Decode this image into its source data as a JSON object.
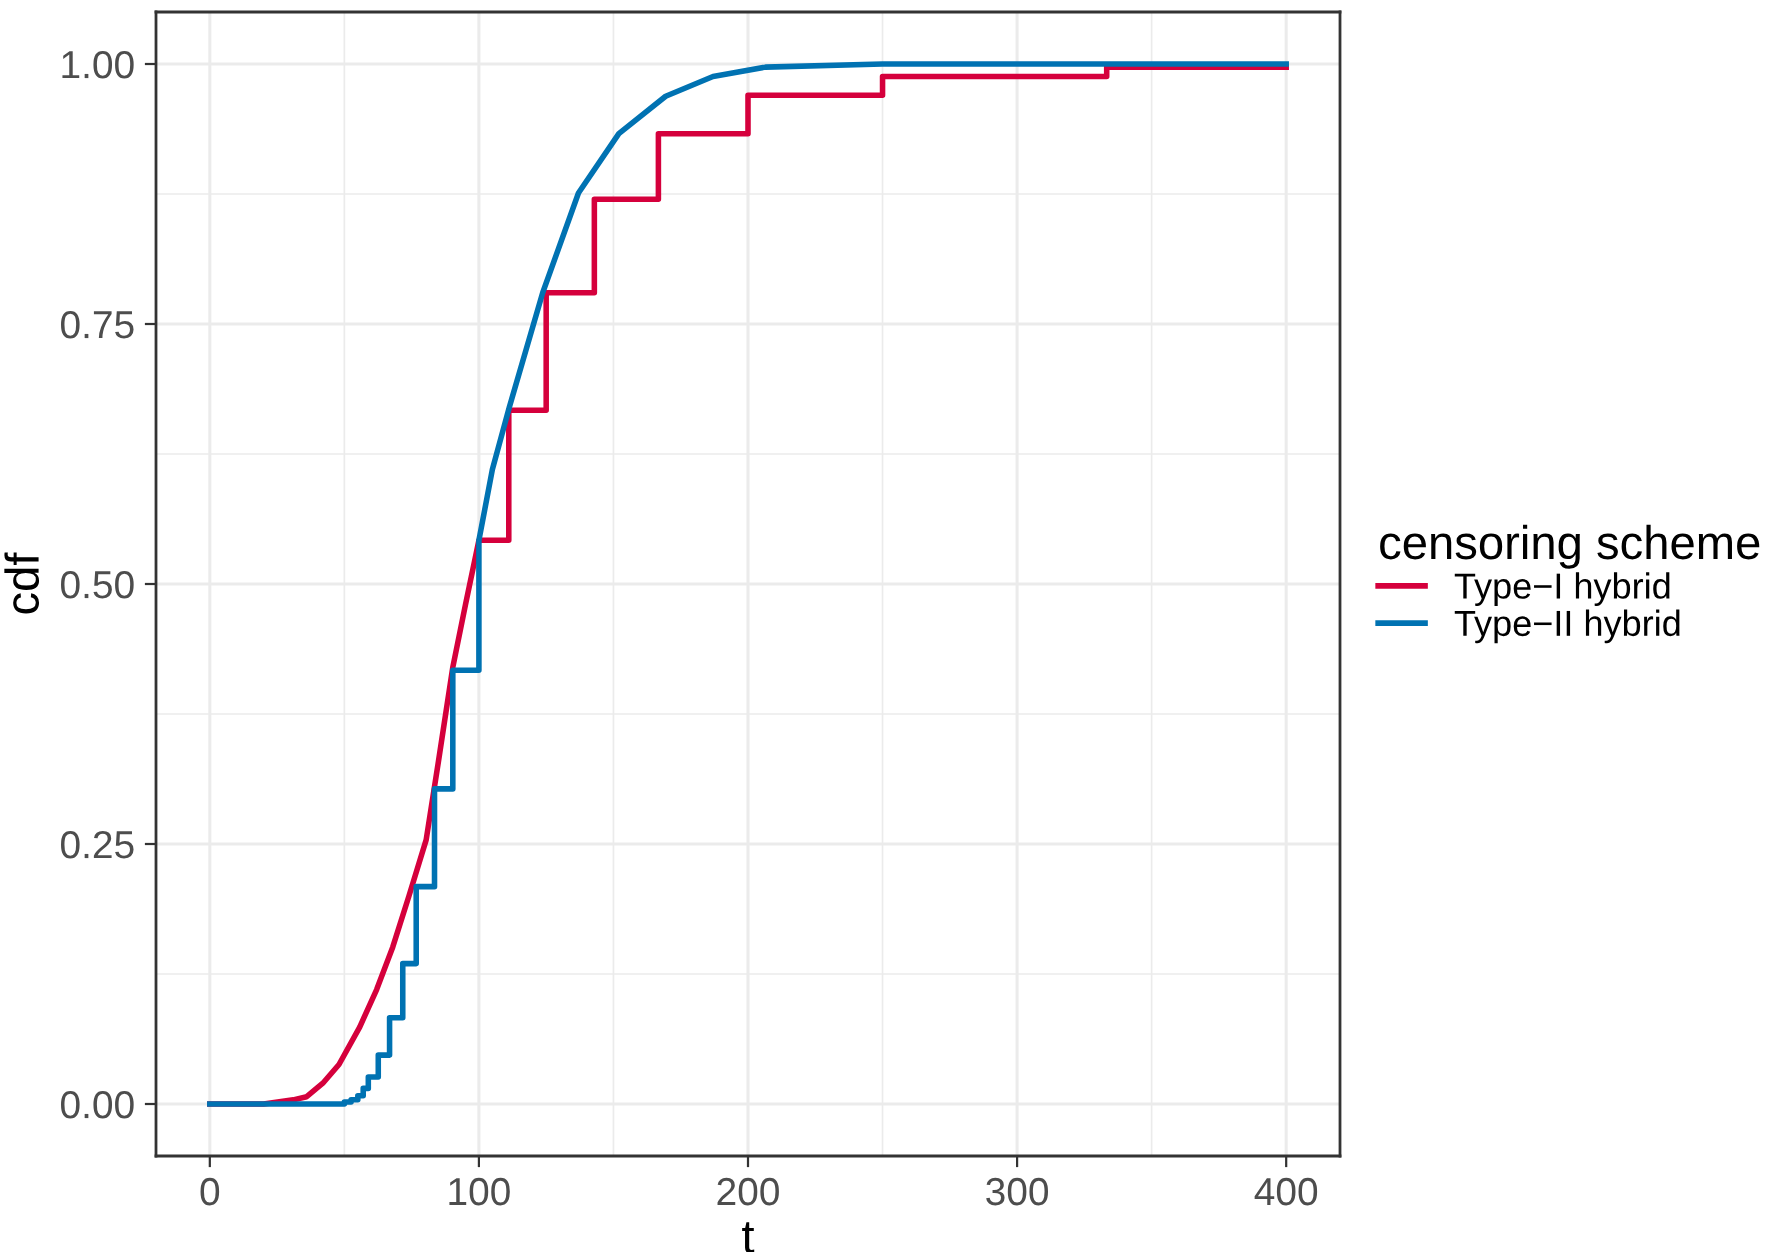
{
  "chart_data": {
    "type": "line",
    "xlabel": "t",
    "ylabel": "cdf",
    "legend_title": "censoring scheme",
    "xlim": [
      -20,
      420
    ],
    "ylim": [
      -0.05,
      1.05
    ],
    "xticks": [
      0,
      100,
      200,
      300,
      400
    ],
    "yticks": [
      {
        "value": 0,
        "label": "0.00"
      },
      {
        "value": 0.25,
        "label": "0.25"
      },
      {
        "value": 0.5,
        "label": "0.50"
      },
      {
        "value": 0.75,
        "label": "0.75"
      },
      {
        "value": 1,
        "label": "1.00"
      }
    ],
    "grid": true,
    "legend": "right",
    "line_style": "solid",
    "marker": "none",
    "series": [
      {
        "name": "Type−I hybrid",
        "color": "#d5003c",
        "x": [
          0,
          20,
          31,
          36,
          42,
          48,
          55.7,
          62,
          68,
          74,
          80.4,
          85,
          90.3,
          95,
          100,
          111.1,
          111.1,
          125,
          125,
          142.9,
          142.9,
          166.7,
          166.7,
          200,
          200,
          250,
          250,
          333.3,
          333.3,
          400
        ],
        "values": [
          0,
          0,
          0.004,
          0.007,
          0.02,
          0.038,
          0.074,
          0.11,
          0.151,
          0.2,
          0.254,
          0.33,
          0.42,
          0.48,
          0.542,
          0.542,
          0.667,
          0.667,
          0.78,
          0.78,
          0.87,
          0.87,
          0.933,
          0.933,
          0.97,
          0.97,
          0.988,
          0.988,
          0.997,
          0.997
        ]
      },
      {
        "name": "Type−II hybrid",
        "color": "#0072b2",
        "x": [
          0,
          50,
          50,
          52.5,
          52.5,
          55,
          55,
          57,
          57,
          58.9,
          58.9,
          62.6,
          62.6,
          66.8,
          66.8,
          71.7,
          71.7,
          76.7,
          76.7,
          83.5,
          83.5,
          90.3,
          90.3,
          100,
          100,
          105,
          111.3,
          123.7,
          137,
          152,
          169.4,
          187,
          206.5,
          250,
          400
        ],
        "values": [
          0,
          0,
          0.002,
          0.002,
          0.004,
          0.004,
          0.008,
          0.008,
          0.015,
          0.015,
          0.026,
          0.026,
          0.047,
          0.047,
          0.083,
          0.083,
          0.135,
          0.135,
          0.209,
          0.209,
          0.303,
          0.303,
          0.417,
          0.417,
          0.542,
          0.61,
          0.67,
          0.78,
          0.876,
          0.933,
          0.969,
          0.988,
          0.997,
          1.0,
          1.0
        ]
      }
    ]
  }
}
